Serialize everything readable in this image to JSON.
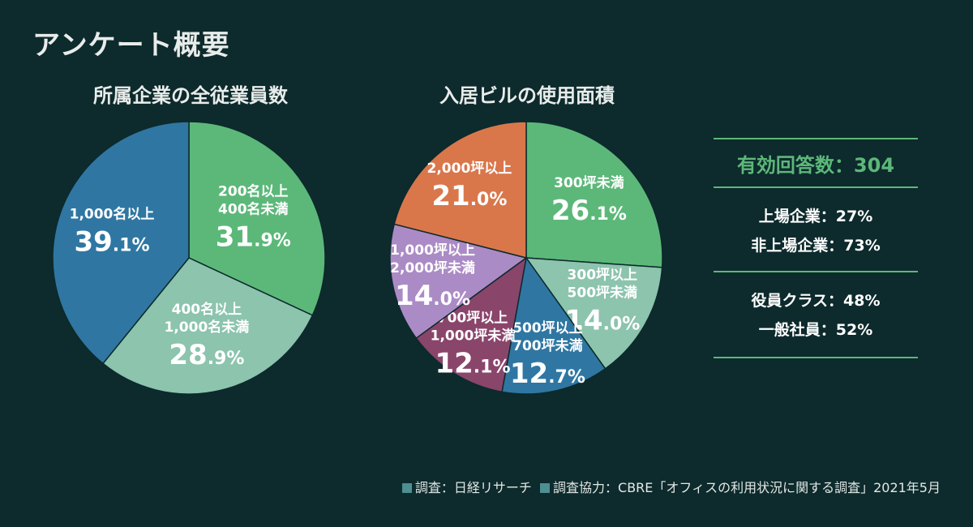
{
  "page_title": "アンケート概要",
  "chart_data": [
    {
      "type": "pie",
      "title": "所属企業の全従業員数",
      "unit": "%",
      "slices": [
        {
          "label": [
            "200名以上",
            "400名未満"
          ],
          "value": 31.9,
          "int": "31",
          "dec": ".9",
          "color": "#5cb879"
        },
        {
          "label": [
            "400名以上",
            "1,000名未満"
          ],
          "value": 28.9,
          "int": "28",
          "dec": ".9",
          "color": "#8cc4ad"
        },
        {
          "label": [
            "1,000名以上"
          ],
          "value": 39.1,
          "int": "39",
          "dec": ".1",
          "color": "#2f77a2"
        }
      ]
    },
    {
      "type": "pie",
      "title": "入居ビルの使用面積",
      "unit": "%",
      "slices": [
        {
          "label": [
            "300坪未満"
          ],
          "value": 26.1,
          "int": "26",
          "dec": ".1",
          "color": "#5cb879"
        },
        {
          "label": [
            "300坪以上",
            "500坪未満"
          ],
          "value": 14.0,
          "int": "14",
          "dec": ".0",
          "color": "#8cc4ad"
        },
        {
          "label": [
            "500坪以上",
            "700坪未満"
          ],
          "value": 12.7,
          "int": "12",
          "dec": ".7",
          "color": "#2f77a2"
        },
        {
          "label": [
            "700坪以上",
            "1,000坪未満"
          ],
          "value": 12.1,
          "int": "12",
          "dec": ".1",
          "color": "#8a456b"
        },
        {
          "label": [
            "1,000坪以上",
            "2,000坪未満"
          ],
          "value": 14.0,
          "int": "14",
          "dec": ".0",
          "color": "#ab8bc5"
        },
        {
          "label": [
            "2,000坪以上"
          ],
          "value": 21.0,
          "int": "21",
          "dec": ".0",
          "color": "#d9774b"
        }
      ]
    }
  ],
  "summary": {
    "title": "有効回答数：304",
    "group1": [
      "上場企業：27%",
      "非上場企業：73%"
    ],
    "group2": [
      "役員クラス：48%",
      "一般社員：52%"
    ]
  },
  "footnote": {
    "survey": "調査：日経リサーチ",
    "cooperation": "調査協力：CBRE「オフィスの利用状況に関する調査」2021年5月"
  }
}
